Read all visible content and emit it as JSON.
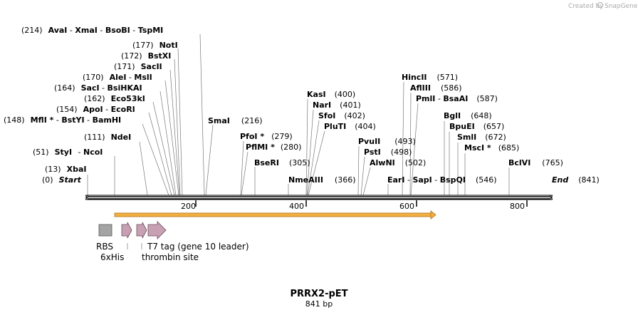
{
  "credit": {
    "prefix": "Created by",
    "brand": "SnapGene"
  },
  "map": {
    "title": "PRRX2-pET",
    "length_label": "841 bp",
    "length": 841
  },
  "markers": [
    {
      "name": "Start",
      "pos": "(0)"
    },
    {
      "name": "End",
      "pos": "(841)"
    }
  ],
  "sites": [
    {
      "pos": "(13)",
      "names": [
        "XbaI"
      ]
    },
    {
      "pos": "(51)",
      "names": [
        "StyI",
        "NcoI"
      ]
    },
    {
      "pos": "(111)",
      "names": [
        "NdeI"
      ]
    },
    {
      "pos": "(148)",
      "names": [
        "MflI *",
        "BstYI",
        "BamHI"
      ]
    },
    {
      "pos": "(154)",
      "names": [
        "ApoI",
        "EcoRI"
      ]
    },
    {
      "pos": "(162)",
      "names": [
        "Eco53kI"
      ]
    },
    {
      "pos": "(164)",
      "names": [
        "SacI",
        "BsiHKAI"
      ]
    },
    {
      "pos": "(170)",
      "names": [
        "AleI",
        "MslI"
      ]
    },
    {
      "pos": "(171)",
      "names": [
        "SacII"
      ]
    },
    {
      "pos": "(172)",
      "names": [
        "BstXI"
      ]
    },
    {
      "pos": "(177)",
      "names": [
        "NotI"
      ]
    },
    {
      "pos": "(214)",
      "names": [
        "AvaI",
        "XmaI",
        "BsoBI",
        "TspMI"
      ]
    },
    {
      "pos": "(216)",
      "names": [
        "SmaI"
      ]
    },
    {
      "pos": "(279)",
      "names": [
        "PfoI *"
      ]
    },
    {
      "pos": "(280)",
      "names": [
        "PflMI *"
      ]
    },
    {
      "pos": "(305)",
      "names": [
        "BseRI"
      ]
    },
    {
      "pos": "(366)",
      "names": [
        "NmeAIII"
      ]
    },
    {
      "pos": "(400)",
      "names": [
        "KasI"
      ]
    },
    {
      "pos": "(401)",
      "names": [
        "NarI"
      ]
    },
    {
      "pos": "(402)",
      "names": [
        "SfoI"
      ]
    },
    {
      "pos": "(404)",
      "names": [
        "PluTI"
      ]
    },
    {
      "pos": "(493)",
      "names": [
        "PvuII"
      ]
    },
    {
      "pos": "(498)",
      "names": [
        "PstI"
      ]
    },
    {
      "pos": "(502)",
      "names": [
        "AlwNI"
      ]
    },
    {
      "pos": "(546)",
      "names": [
        "EarI",
        "SapI",
        "BspQI"
      ]
    },
    {
      "pos": "(571)",
      "names": [
        "HincII"
      ]
    },
    {
      "pos": "(586)",
      "names": [
        "AflIII"
      ]
    },
    {
      "pos": "(587)",
      "names": [
        "PmlI",
        "BsaAI"
      ]
    },
    {
      "pos": "(648)",
      "names": [
        "BglI"
      ]
    },
    {
      "pos": "(657)",
      "names": [
        "BpuEI"
      ]
    },
    {
      "pos": "(672)",
      "names": [
        "SmlI"
      ]
    },
    {
      "pos": "(685)",
      "names": [
        "MscI *"
      ]
    },
    {
      "pos": "(765)",
      "names": [
        "BclVI"
      ]
    }
  ],
  "ticks": [
    "200",
    "400",
    "600",
    "800"
  ],
  "features": [
    {
      "label": "RBS"
    },
    {
      "label": "6xHis"
    },
    {
      "label": "T7 tag (gene 10 leader)"
    },
    {
      "label": "thrombin site"
    }
  ],
  "colors": {
    "orf": "#f0a020",
    "rbs": "#a0a0a0",
    "tag": "#c8a0b4",
    "backbone": "#000000"
  }
}
